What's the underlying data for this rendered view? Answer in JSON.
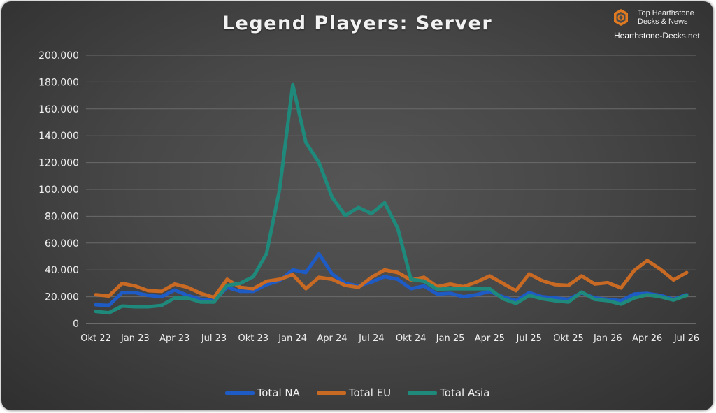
{
  "brand": {
    "line1": "Top Hearthstone",
    "line2": "Decks & News",
    "site": "Hearthstone-Decks.net"
  },
  "chart_data": {
    "type": "line",
    "title": "Legend Players: Server",
    "xlabel": "",
    "ylabel": "",
    "ylim": [
      0,
      200000
    ],
    "yticks": [
      0,
      20000,
      40000,
      60000,
      80000,
      100000,
      120000,
      140000,
      160000,
      180000,
      200000
    ],
    "ytick_labels": [
      "0",
      "20.000",
      "40.000",
      "60.000",
      "80.000",
      "100.000",
      "120.000",
      "140.000",
      "160.000",
      "180.000",
      "200.000"
    ],
    "xtick_labels": [
      "Okt 22",
      "Jan 23",
      "Apr 23",
      "Jul 23",
      "Okt 23",
      "Jan 24",
      "Apr 24",
      "Jul 24",
      "Okt 24",
      "Jan 25",
      "Apr 25",
      "Jul 25",
      "Okt 25",
      "Jan 26",
      "Apr 26",
      "Jul 26"
    ],
    "x": [
      "2022-10",
      "2022-11",
      "2022-12",
      "2023-01",
      "2023-02",
      "2023-03",
      "2023-04",
      "2023-05",
      "2023-06",
      "2023-07",
      "2023-08",
      "2023-09",
      "2023-10",
      "2023-11",
      "2023-12",
      "2024-01",
      "2024-02",
      "2024-03",
      "2024-04",
      "2024-05",
      "2024-06",
      "2024-07",
      "2024-08",
      "2024-09",
      "2024-10",
      "2024-11",
      "2024-12",
      "2025-01",
      "2025-02",
      "2025-03",
      "2025-04",
      "2025-05",
      "2025-06",
      "2025-07",
      "2025-08",
      "2025-09",
      "2025-10",
      "2025-11",
      "2025-12",
      "2026-01",
      "2026-02",
      "2026-03",
      "2026-04",
      "2026-05",
      "2026-06",
      "2026-07"
    ],
    "grid": "horizontal",
    "legend_position": "bottom",
    "series": [
      {
        "name": "Total NA",
        "color": "#1f5bc4",
        "values": [
          14000,
          13500,
          23000,
          23000,
          21000,
          20000,
          25000,
          21000,
          18000,
          17000,
          27000,
          24000,
          24000,
          29000,
          32000,
          40000,
          38000,
          52000,
          37000,
          30000,
          28000,
          31000,
          35000,
          33000,
          26000,
          28000,
          22000,
          22500,
          20000,
          21500,
          24000,
          20000,
          17000,
          23000,
          20000,
          19000,
          18000,
          23000,
          19000,
          18000,
          17000,
          22000,
          22500,
          21000,
          18000,
          21500
        ]
      },
      {
        "name": "Total EU",
        "color": "#c86a23",
        "values": [
          21500,
          20500,
          30000,
          28000,
          24500,
          24000,
          29500,
          27000,
          22500,
          19500,
          33000,
          27000,
          26000,
          31500,
          33000,
          36500,
          26000,
          34500,
          33000,
          28500,
          27000,
          34500,
          40000,
          38000,
          32500,
          34500,
          27500,
          29500,
          27500,
          31000,
          35500,
          30000,
          24500,
          37000,
          32000,
          29000,
          28500,
          35500,
          29500,
          30500,
          26500,
          39500,
          47000,
          40500,
          32500,
          38000
        ]
      },
      {
        "name": "Total Asia",
        "color": "#1f8a7c",
        "values": [
          9000,
          8000,
          13000,
          12500,
          12500,
          13500,
          19000,
          19000,
          16000,
          16000,
          28500,
          30000,
          35000,
          52000,
          100000,
          178000,
          135000,
          120000,
          94000,
          80500,
          86500,
          82000,
          90000,
          71000,
          33000,
          31500,
          25500,
          26000,
          26000,
          26000,
          26000,
          18500,
          15000,
          21000,
          18500,
          17000,
          16000,
          23500,
          18000,
          17000,
          14500,
          19000,
          21500,
          20000,
          17500,
          21000
        ]
      }
    ]
  }
}
